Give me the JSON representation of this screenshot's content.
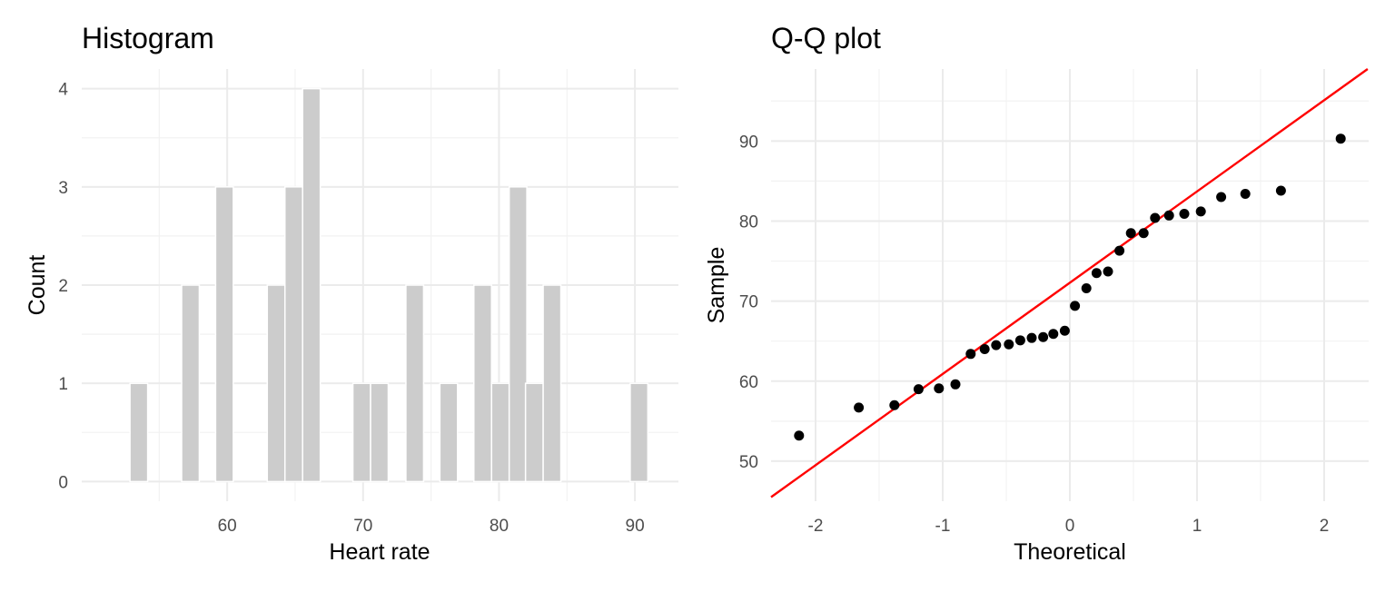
{
  "chart_data": [
    {
      "type": "bar",
      "title": "Histogram",
      "xlabel": "Heart rate",
      "ylabel": "Count",
      "xlim": [
        49.3,
        93.2
      ],
      "ylim": [
        -0.2,
        4.2
      ],
      "xticks": [
        60,
        70,
        80,
        90
      ],
      "yticks": [
        0,
        1,
        2,
        3,
        4
      ],
      "grid": true,
      "bin_width": 1.3,
      "bars": [
        {
          "x": 53.5,
          "count": 1
        },
        {
          "x": 57.3,
          "count": 2
        },
        {
          "x": 59.8,
          "count": 3
        },
        {
          "x": 63.6,
          "count": 2
        },
        {
          "x": 64.9,
          "count": 3
        },
        {
          "x": 66.2,
          "count": 4
        },
        {
          "x": 69.9,
          "count": 1
        },
        {
          "x": 71.2,
          "count": 1
        },
        {
          "x": 73.8,
          "count": 2
        },
        {
          "x": 76.3,
          "count": 1
        },
        {
          "x": 78.8,
          "count": 2
        },
        {
          "x": 80.1,
          "count": 1
        },
        {
          "x": 81.4,
          "count": 3
        },
        {
          "x": 82.6,
          "count": 1
        },
        {
          "x": 83.9,
          "count": 2
        },
        {
          "x": 90.3,
          "count": 1
        }
      ]
    },
    {
      "type": "scatter",
      "title": "Q-Q plot",
      "xlabel": "Theoretical",
      "ylabel": "Sample",
      "xlim": [
        -2.35,
        2.35
      ],
      "ylim": [
        45,
        99
      ],
      "xticks": [
        -2,
        -1,
        0,
        1,
        2
      ],
      "yticks": [
        50,
        60,
        70,
        80,
        90
      ],
      "grid": true,
      "points": [
        {
          "x": -2.13,
          "y": 53.2
        },
        {
          "x": -1.66,
          "y": 56.7
        },
        {
          "x": -1.38,
          "y": 57.0
        },
        {
          "x": -1.19,
          "y": 59.0
        },
        {
          "x": -1.03,
          "y": 59.1
        },
        {
          "x": -0.9,
          "y": 59.6
        },
        {
          "x": -0.78,
          "y": 63.4
        },
        {
          "x": -0.67,
          "y": 64.0
        },
        {
          "x": -0.58,
          "y": 64.5
        },
        {
          "x": -0.48,
          "y": 64.6
        },
        {
          "x": -0.39,
          "y": 65.1
        },
        {
          "x": -0.3,
          "y": 65.4
        },
        {
          "x": -0.21,
          "y": 65.5
        },
        {
          "x": -0.13,
          "y": 65.9
        },
        {
          "x": -0.04,
          "y": 66.3
        },
        {
          "x": 0.04,
          "y": 69.4
        },
        {
          "x": 0.13,
          "y": 71.6
        },
        {
          "x": 0.21,
          "y": 73.5
        },
        {
          "x": 0.3,
          "y": 73.7
        },
        {
          "x": 0.39,
          "y": 76.3
        },
        {
          "x": 0.48,
          "y": 78.5
        },
        {
          "x": 0.58,
          "y": 78.5
        },
        {
          "x": 0.67,
          "y": 80.4
        },
        {
          "x": 0.78,
          "y": 80.7
        },
        {
          "x": 0.9,
          "y": 80.9
        },
        {
          "x": 1.03,
          "y": 81.2
        },
        {
          "x": 1.19,
          "y": 83.0
        },
        {
          "x": 1.38,
          "y": 83.4
        },
        {
          "x": 1.66,
          "y": 83.8
        },
        {
          "x": 2.13,
          "y": 90.3
        }
      ],
      "reference_line": {
        "intercept": 72.3,
        "slope": 11.4,
        "color": "#ff0000"
      }
    }
  ]
}
